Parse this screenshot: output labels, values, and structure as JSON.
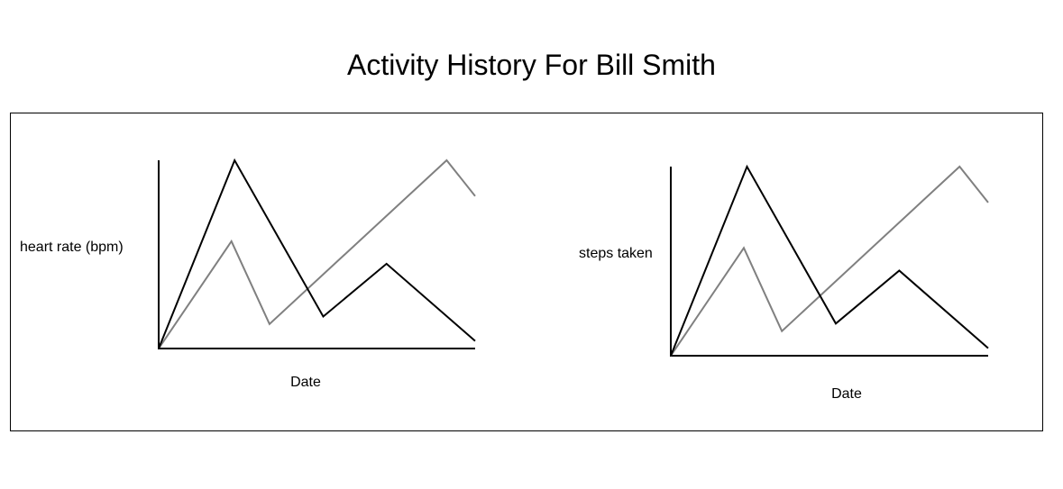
{
  "page": {
    "title": "Activity History For Bill Smith"
  },
  "colors": {
    "series_dark": "#000000",
    "series_light": "#808080",
    "axis": "#000000"
  },
  "chart_data": [
    {
      "type": "line",
      "title": "",
      "xlabel": "Date",
      "ylabel": "heart rate (bpm)",
      "xlim": [
        0,
        100
      ],
      "ylim": [
        0,
        100
      ],
      "grid": false,
      "series": [
        {
          "values": [
            [
              0,
              0
            ],
            [
              24,
              100
            ],
            [
              52,
              17
            ],
            [
              72,
              45
            ],
            [
              100,
              4
            ]
          ]
        },
        {
          "values": [
            [
              0,
              0
            ],
            [
              23,
              57
            ],
            [
              35,
              13
            ],
            [
              91,
              100
            ],
            [
              100,
              81
            ]
          ]
        }
      ]
    },
    {
      "type": "line",
      "title": "",
      "xlabel": "Date",
      "ylabel": "steps taken",
      "xlim": [
        0,
        100
      ],
      "ylim": [
        0,
        100
      ],
      "grid": false,
      "series": [
        {
          "values": [
            [
              0,
              0
            ],
            [
              24,
              100
            ],
            [
              52,
              17
            ],
            [
              72,
              45
            ],
            [
              100,
              4
            ]
          ]
        },
        {
          "values": [
            [
              0,
              0
            ],
            [
              23,
              57
            ],
            [
              35,
              13
            ],
            [
              91,
              100
            ],
            [
              100,
              81
            ]
          ]
        }
      ]
    }
  ]
}
